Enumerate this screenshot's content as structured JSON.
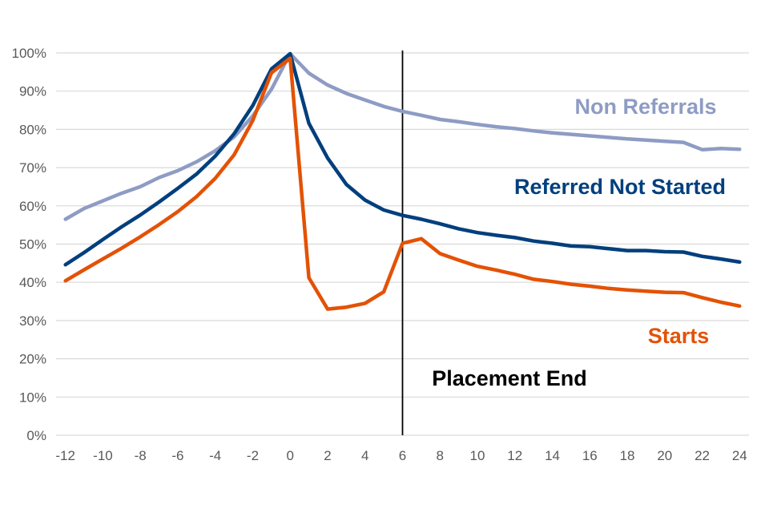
{
  "chart_data": {
    "type": "line",
    "title": "",
    "xlabel": "",
    "ylabel": "",
    "xlim": [
      -12.5,
      24.5
    ],
    "ylim": [
      0,
      100
    ],
    "x_ticks": [
      -12,
      -10,
      -8,
      -6,
      -4,
      -2,
      0,
      2,
      4,
      6,
      8,
      10,
      12,
      14,
      16,
      18,
      20,
      22,
      24
    ],
    "y_ticks": [
      0,
      10,
      20,
      30,
      40,
      50,
      60,
      70,
      80,
      90,
      100
    ],
    "y_tick_labels": [
      "0%",
      "10%",
      "20%",
      "30%",
      "40%",
      "50%",
      "60%",
      "70%",
      "80%",
      "90%",
      "100%"
    ],
    "grid": "horizontal",
    "x": [
      -12,
      -11,
      -10,
      -9,
      -8,
      -7,
      -6,
      -5,
      -4,
      -3,
      -2,
      -1,
      0,
      1,
      2,
      3,
      4,
      5,
      6,
      7,
      8,
      9,
      10,
      11,
      12,
      13,
      14,
      15,
      16,
      17,
      18,
      19,
      20,
      21,
      22,
      23,
      24
    ],
    "series": [
      {
        "name": "Non Referrals",
        "color": "#8E9CC4",
        "values": [
          56.5,
          59.3,
          61.3,
          63.3,
          65,
          67.4,
          69.2,
          71.5,
          74.4,
          78,
          83.5,
          90.5,
          99.8,
          94.7,
          91.6,
          89.4,
          87.7,
          86,
          84.7,
          83.7,
          82.6,
          82,
          81.3,
          80.7,
          80.2,
          79.6,
          79.1,
          78.7,
          78.3,
          77.9,
          77.5,
          77.2,
          76.9,
          76.6,
          74.7,
          75,
          74.8
        ]
      },
      {
        "name": "Referred Not Started",
        "color": "#003F7D",
        "values": [
          44.6,
          47.8,
          51.2,
          54.5,
          57.6,
          61,
          64.6,
          68.3,
          73,
          78.8,
          86.2,
          95.8,
          99.8,
          81.6,
          72.5,
          65.6,
          61.5,
          58.9,
          57.5,
          56.5,
          55.3,
          54,
          53,
          52.3,
          51.7,
          50.8,
          50.2,
          49.5,
          49.3,
          48.8,
          48.3,
          48.3,
          48,
          47.9,
          46.8,
          46.1,
          45.3
        ]
      },
      {
        "name": "Starts",
        "color": "#E35205",
        "values": [
          40.4,
          43.3,
          46.1,
          48.9,
          51.9,
          55.1,
          58.5,
          62.4,
          67.2,
          73.3,
          82.3,
          94.8,
          98.6,
          41.2,
          33,
          33.5,
          34.5,
          37.5,
          50.2,
          51.4,
          47.5,
          45.8,
          44.2,
          43.2,
          42.1,
          40.8,
          40.2,
          39.5,
          39,
          38.4,
          38,
          37.7,
          37.4,
          37.3,
          36,
          34.8,
          33.8
        ]
      }
    ],
    "annotations": [
      {
        "type": "vline",
        "x": 6,
        "text": "Placement End"
      }
    ]
  }
}
